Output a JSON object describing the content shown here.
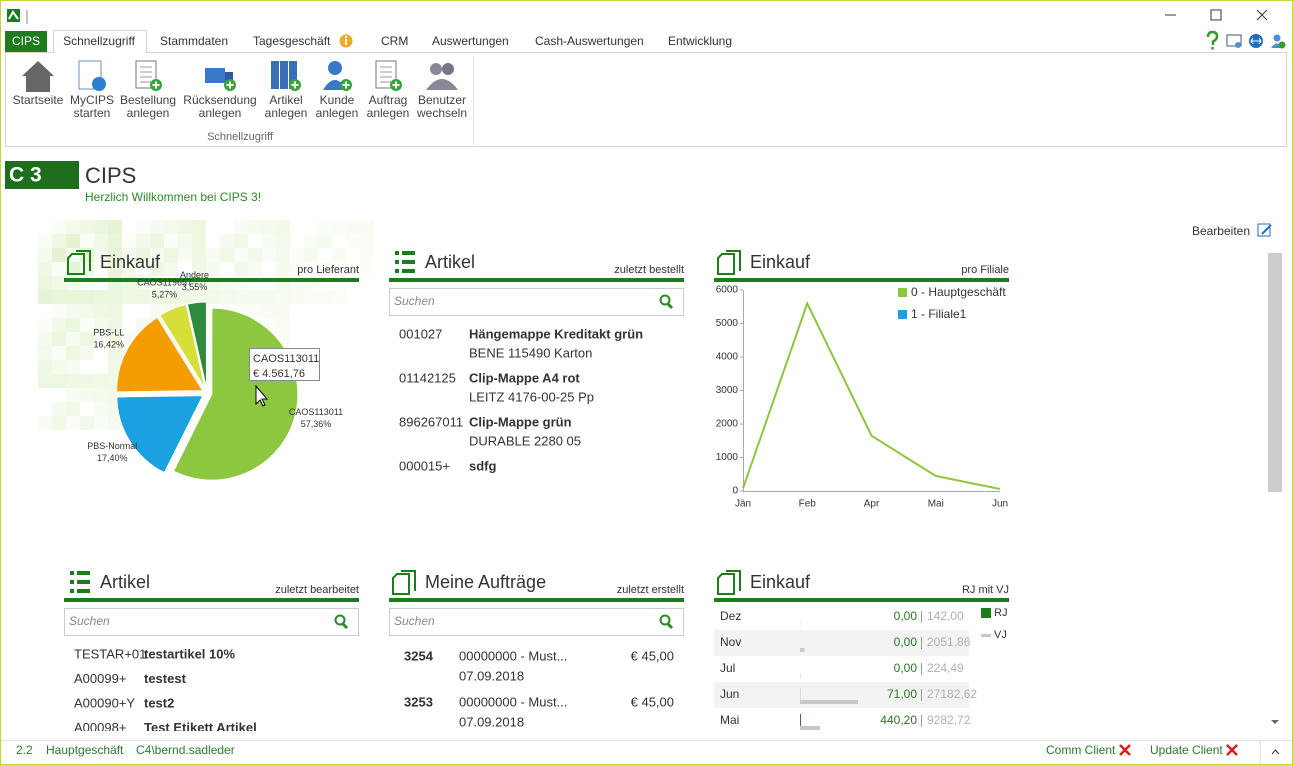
{
  "tabs": [
    "CIPS",
    "Schnellzugriff",
    "Stammdaten",
    "Tagesgeschäft",
    "CRM",
    "Auswertungen",
    "Cash-Auswertungen",
    "Entwicklung"
  ],
  "ribbon": {
    "buttons": [
      [
        "Startseite"
      ],
      [
        "MyCIPS",
        "starten"
      ],
      [
        "Bestellung",
        "anlegen"
      ],
      [
        "Rücksendung",
        "anlegen"
      ],
      [
        "Artikel",
        "anlegen"
      ],
      [
        "Kunde",
        "anlegen"
      ],
      [
        "Auftrag",
        "anlegen"
      ],
      [
        "Benutzer",
        "wechseln"
      ]
    ],
    "group": "Schnellzugriff"
  },
  "header": {
    "logo": "C 3",
    "title": "CIPS",
    "subtitle": "Herzlich Willkommen bei CIPS 3!"
  },
  "edit_label": "Bearbeiten",
  "widgets": [
    {
      "title": "Einkauf",
      "subtitle": "pro Lieferant"
    },
    {
      "title": "Artikel",
      "subtitle": "zuletzt bestellt",
      "search": "Suchen",
      "items": [
        {
          "code": "001027",
          "name": "Hängemappe Kreditakt grün",
          "detail": "BENE 115490 Karton"
        },
        {
          "code": "01142125",
          "name": "Clip-Mappe A4 rot",
          "detail": "LEITZ 4176-00-25 Pp"
        },
        {
          "code": "896267011",
          "name": "Clip-Mappe grün",
          "detail": "DURABLE 2280 05"
        },
        {
          "code": "000015+",
          "name": "sdfg"
        }
      ]
    },
    {
      "title": "Einkauf",
      "subtitle": "pro Filiale"
    },
    {
      "title": "Artikel",
      "subtitle": "zuletzt bearbeitet",
      "search": "Suchen",
      "items": [
        {
          "code": "TESTAR+01",
          "name": "testartikel 10%"
        },
        {
          "code": "A00099+",
          "name": "testest"
        },
        {
          "code": "A00090+Y",
          "name": "test2"
        },
        {
          "code": "A00098+",
          "name": "Test Etikett Artikel"
        }
      ]
    },
    {
      "title": "Meine Aufträge",
      "subtitle": "zuletzt erstellt",
      "search": "Suchen",
      "items": [
        {
          "number": "3254",
          "description": "00000000 - Must...",
          "date": "07.09.2018",
          "amount": "€ 45,00"
        },
        {
          "number": "3253",
          "description": "00000000 - Must...",
          "date": "07.09.2018",
          "amount": "€ 45,00"
        }
      ]
    },
    {
      "title": "Einkauf",
      "subtitle": "RJ mit VJ"
    }
  ],
  "chart_data": [
    {
      "type": "pie",
      "categories": [
        "CAOS113011",
        "PBS-Normal",
        "PBS-LL",
        "CAOS119657",
        "Andere"
      ],
      "values": [
        57.36,
        17.4,
        16.42,
        5.27,
        3.55
      ],
      "value_labels": [
        "57,36%",
        "17,40%",
        "16,42%",
        "5,27%",
        "3,55%"
      ],
      "colors": [
        "#8dc63f",
        "#1ba1e2",
        "#f59c00",
        "#d6df3a",
        "#2e8b3e"
      ],
      "tooltip": {
        "title": "CAOS113011",
        "value": {
          "value": 4561.76,
          "label": "€ 4.561,76"
        }
      }
    },
    {
      "type": "line",
      "categories": [
        "Jän",
        "Feb",
        "Apr",
        "Mai",
        "Jun"
      ],
      "series": [
        {
          "name": "0 - Hauptgeschäft",
          "color": "#8dc63f",
          "values": [
            80,
            5600,
            1650,
            450,
            60
          ]
        },
        {
          "name": "1 - Filiale1",
          "color": "#1ba1e2",
          "values": [
            null,
            null,
            null,
            null,
            null
          ]
        }
      ],
      "ylim": [
        0,
        6000
      ],
      "yticks": [
        0,
        1000,
        2000,
        3000,
        4000,
        5000,
        6000
      ]
    },
    {
      "type": "bar",
      "orientation": "horizontal",
      "categories": [
        "Dez",
        "Nov",
        "Jul",
        "Jun",
        "Mai"
      ],
      "series": [
        {
          "name": "RJ",
          "color": "#1e7b1e",
          "values": [
            0,
            0,
            0,
            71,
            440.2
          ],
          "value_labels": [
            "0,00",
            "0,00",
            "0,00",
            "71,00",
            "440,20"
          ]
        },
        {
          "name": "VJ",
          "color": "#c8c8c8",
          "values": [
            142,
            2051.86,
            224.49,
            27182.62,
            9282.72
          ],
          "value_labels": [
            "142,00",
            "2051,86",
            "224,49",
            "27182,62",
            "9282,72"
          ]
        }
      ]
    }
  ],
  "status": {
    "version": "2.2",
    "branch": "Hauptgeschäft",
    "user": "C4\\bernd.sadleder",
    "comm": "Comm Client",
    "update": "Update Client"
  }
}
